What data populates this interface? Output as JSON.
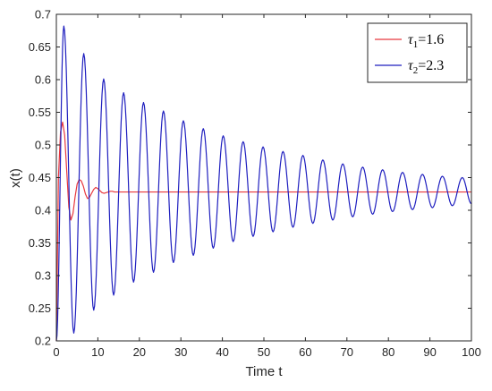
{
  "chart_data": {
    "type": "line",
    "xlabel": "Time t",
    "ylabel": "x(t)",
    "xlim": [
      0,
      100
    ],
    "ylim": [
      0.2,
      0.7
    ],
    "xticks": [
      0,
      10,
      20,
      30,
      40,
      50,
      60,
      70,
      80,
      90,
      100
    ],
    "yticks": [
      0.2,
      0.25,
      0.3,
      0.35,
      0.4,
      0.45,
      0.5,
      0.55,
      0.6,
      0.65,
      0.7
    ],
    "xtick_labels": [
      "0",
      "10",
      "20",
      "30",
      "40",
      "50",
      "60",
      "70",
      "80",
      "90",
      "100"
    ],
    "ytick_labels": [
      "0.2",
      "0.25",
      "0.3",
      "0.35",
      "0.4",
      "0.45",
      "0.5",
      "0.55",
      "0.6",
      "0.65",
      "0.7"
    ],
    "legend_position": "top-right",
    "grid": false,
    "series": [
      {
        "name": "τ1=1.6",
        "legend_symbol": "τ",
        "legend_subscript": "1",
        "legend_value": "=1.6",
        "color": "#e8383d",
        "equilibrium": 0.428,
        "period": 4.8,
        "x": [
          0,
          0.5,
          1.0,
          1.5,
          2.0,
          2.5,
          3.0,
          3.5,
          4.0,
          4.5,
          5.0,
          5.5,
          6.0,
          6.5,
          7.0,
          7.5,
          8.0,
          8.5,
          9.0,
          9.5,
          10.0,
          10.5,
          11.0,
          11.5,
          12.0,
          12.5,
          13.0,
          13.5,
          14.0,
          14.5,
          15.0,
          100
        ],
        "y": [
          0.2,
          0.45,
          0.52,
          0.535,
          0.515,
          0.46,
          0.405,
          0.385,
          0.395,
          0.42,
          0.44,
          0.447,
          0.445,
          0.437,
          0.425,
          0.418,
          0.42,
          0.426,
          0.432,
          0.435,
          0.433,
          0.43,
          0.427,
          0.426,
          0.427,
          0.428,
          0.429,
          0.429,
          0.428,
          0.428,
          0.428,
          0.428
        ]
      },
      {
        "name": "τ2=2.3",
        "legend_symbol": "τ",
        "legend_subscript": "2",
        "legend_value": "=2.3",
        "color": "#1f1fbf",
        "equilibrium": 0.428,
        "period": 4.8,
        "peaks": [
          [
            1.8,
            0.682
          ],
          [
            6.6,
            0.64
          ],
          [
            11.4,
            0.601
          ],
          [
            16.2,
            0.58
          ],
          [
            21.0,
            0.565
          ],
          [
            25.8,
            0.552
          ],
          [
            30.6,
            0.537
          ],
          [
            35.4,
            0.525
          ],
          [
            40.2,
            0.514
          ],
          [
            45.0,
            0.505
          ],
          [
            49.8,
            0.497
          ],
          [
            54.6,
            0.49
          ],
          [
            59.4,
            0.484
          ],
          [
            64.2,
            0.477
          ],
          [
            69.0,
            0.471
          ],
          [
            73.8,
            0.466
          ],
          [
            78.6,
            0.462
          ],
          [
            83.4,
            0.458
          ],
          [
            88.2,
            0.455
          ],
          [
            93.0,
            0.452
          ],
          [
            97.8,
            0.45
          ]
        ],
        "troughs": [
          [
            0,
            0.2
          ],
          [
            4.2,
            0.212
          ],
          [
            9.0,
            0.247
          ],
          [
            13.8,
            0.27
          ],
          [
            18.6,
            0.29
          ],
          [
            23.4,
            0.305
          ],
          [
            28.2,
            0.32
          ],
          [
            33.0,
            0.331
          ],
          [
            37.8,
            0.342
          ],
          [
            42.6,
            0.352
          ],
          [
            47.4,
            0.36
          ],
          [
            52.2,
            0.367
          ],
          [
            57.0,
            0.374
          ],
          [
            61.8,
            0.38
          ],
          [
            66.6,
            0.385
          ],
          [
            71.4,
            0.39
          ],
          [
            76.2,
            0.394
          ],
          [
            81.0,
            0.398
          ],
          [
            85.8,
            0.401
          ],
          [
            90.6,
            0.404
          ],
          [
            95.4,
            0.407
          ],
          [
            100,
            0.41
          ]
        ]
      }
    ]
  }
}
